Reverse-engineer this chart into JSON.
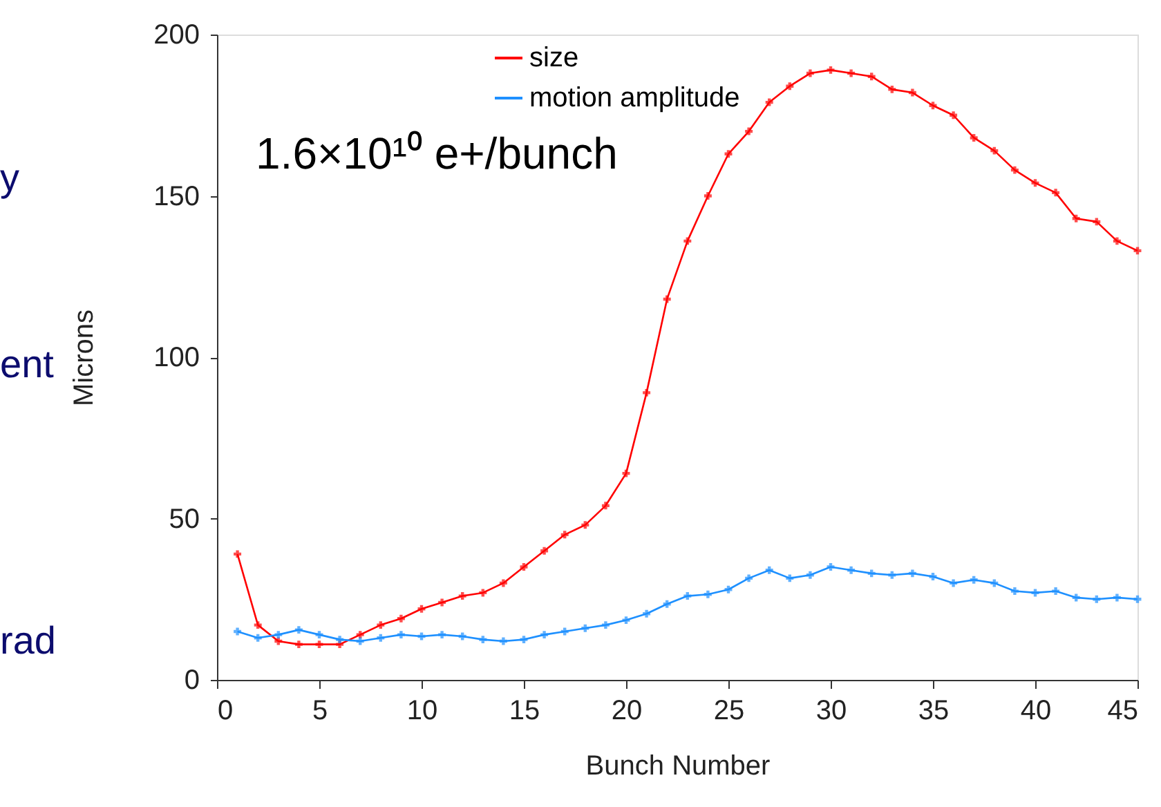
{
  "chart_data": {
    "type": "line",
    "xlabel": "Bunch Number",
    "ylabel": "Microns",
    "x": [
      1,
      2,
      3,
      4,
      5,
      6,
      7,
      8,
      9,
      10,
      11,
      12,
      13,
      14,
      15,
      16,
      17,
      18,
      19,
      20,
      21,
      22,
      23,
      24,
      25,
      26,
      27,
      28,
      29,
      30,
      31,
      32,
      33,
      34,
      35,
      36,
      37,
      38,
      39,
      40,
      41,
      42,
      43,
      44,
      45
    ],
    "series": [
      {
        "name": "size",
        "color": "#ff0000",
        "values": [
          39,
          17,
          12,
          11,
          11,
          11,
          14,
          17,
          19,
          22,
          24,
          26,
          27,
          30,
          35,
          40,
          45,
          48,
          54,
          64,
          89,
          118,
          136,
          150,
          163,
          170,
          179,
          184,
          188,
          189,
          188,
          187,
          183,
          182,
          178,
          175,
          168,
          164,
          158,
          154,
          151,
          143,
          142,
          136,
          133
        ]
      },
      {
        "name": "motion amplitude",
        "color": "#1e90ff",
        "values": [
          15,
          13,
          14,
          15.5,
          14,
          12.5,
          12,
          13,
          14,
          13.5,
          14,
          13.5,
          12.5,
          12,
          12.5,
          14,
          15,
          16,
          17,
          18.5,
          20.5,
          23.5,
          26,
          26.5,
          28,
          31.5,
          34,
          31.5,
          32.5,
          35,
          34,
          33,
          32.5,
          33,
          32,
          30,
          31,
          30,
          27.5,
          27,
          27.5,
          25.5,
          25,
          25.5,
          25
        ]
      }
    ],
    "annotations": [
      "1.6×10¹⁰ e+/bunch",
      "y",
      "ent",
      "rad"
    ],
    "xlim": [
      0,
      45
    ],
    "xticks": [
      0,
      5,
      10,
      15,
      20,
      25,
      30,
      35,
      40,
      45
    ],
    "ylim": [
      0,
      200
    ],
    "yticks": [
      0,
      50,
      100,
      150,
      200
    ],
    "grid": false,
    "legend": "top",
    "marker": "cross",
    "line_style": "solid"
  }
}
